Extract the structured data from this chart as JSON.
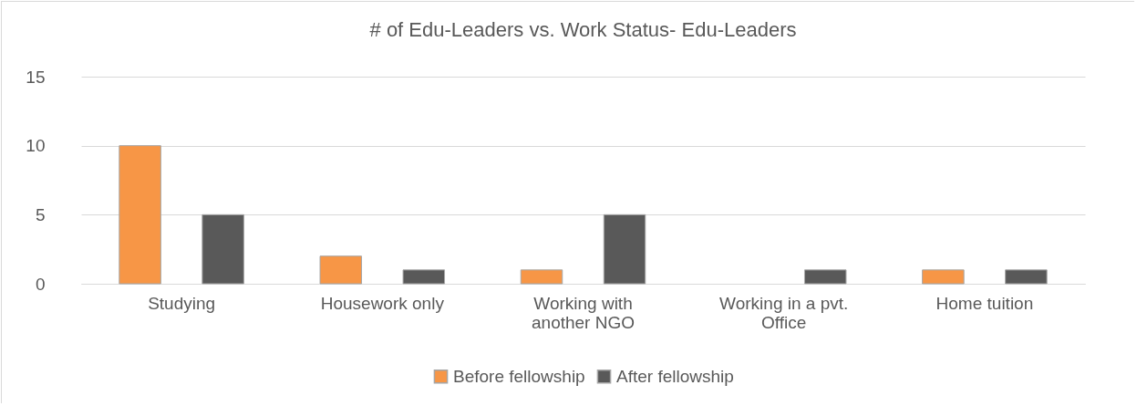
{
  "chart_data": {
    "type": "bar",
    "title": "# of Edu-Leaders vs. Work Status- Edu-Leaders",
    "categories": [
      "Studying",
      "Housework only",
      "Working with another NGO",
      "Working in a pvt. Office",
      "Home tuition"
    ],
    "series": [
      {
        "name": "Before fellowship",
        "color": "#f79646",
        "values": [
          10,
          2,
          1,
          null,
          1
        ]
      },
      {
        "name": "After fellowship",
        "color": "#595959",
        "values": [
          5,
          1,
          5,
          1,
          1
        ]
      }
    ],
    "ylim": [
      0,
      15
    ],
    "yticks": [
      0,
      5,
      10,
      15
    ],
    "grid": "y",
    "legend": "bottom"
  }
}
